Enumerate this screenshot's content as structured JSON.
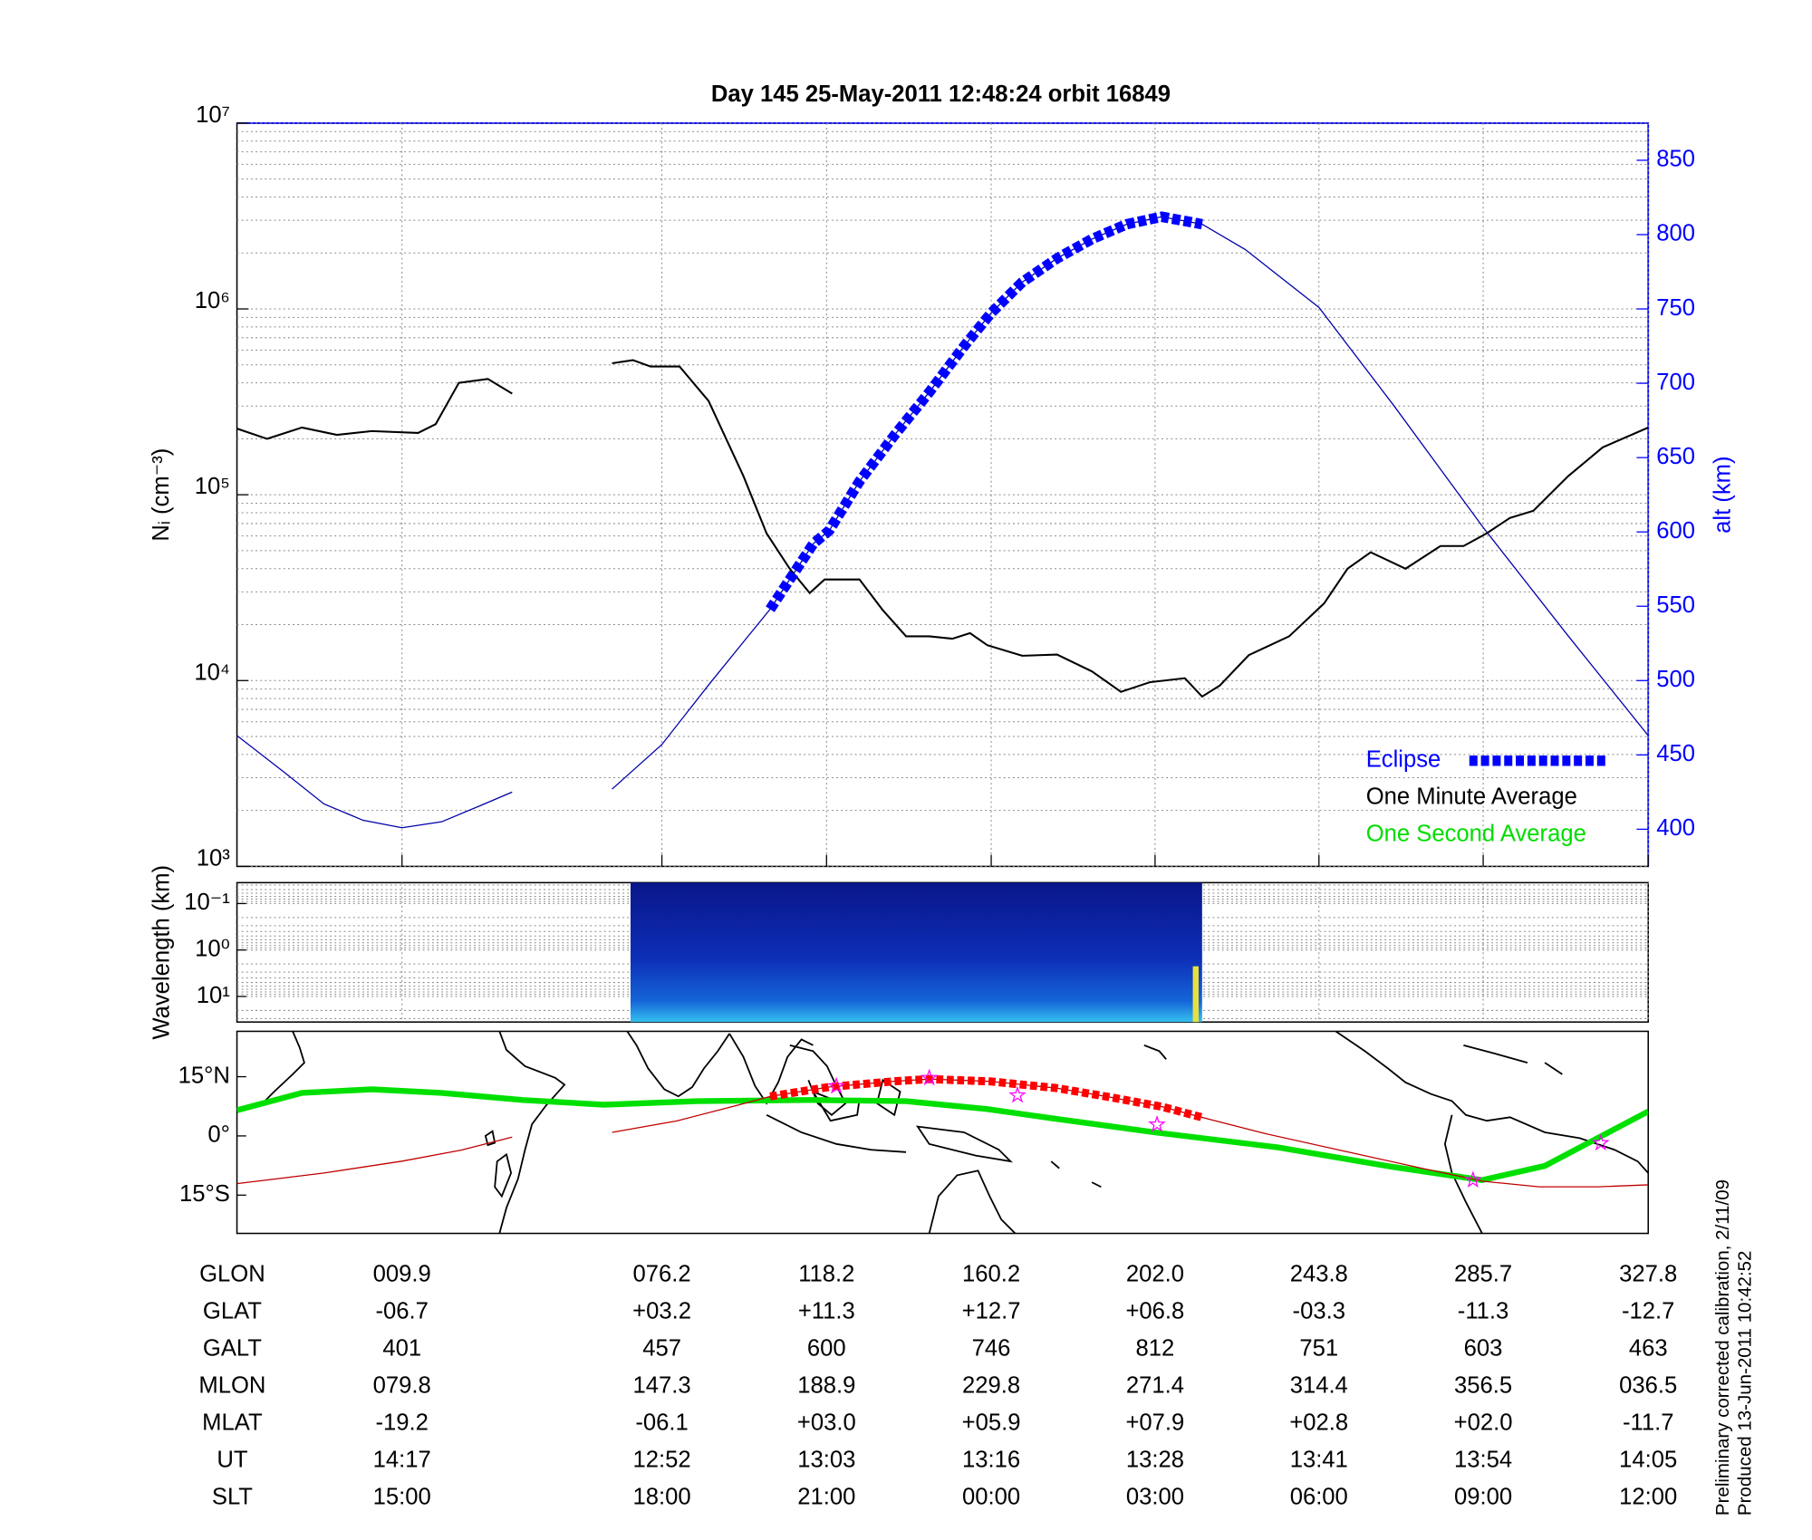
{
  "chart_data": [
    {
      "type": "line",
      "title": "Day 145  25-May-2011 12:48:24   orbit 16849",
      "y_label": "Nᵢ (cm⁻³)",
      "y2_label": "alt (km)",
      "log_y": true,
      "grid": true,
      "minor_grid": true,
      "legend": "lower right",
      "xlim": [
        -32.2,
        327.8
      ],
      "xticks": [
        {
          "value": 9.9,
          "label": "009.9"
        },
        {
          "value": 76.2,
          "label": "076.2"
        },
        118.2,
        160.2,
        {
          "value": 202.0,
          "label": "202.0"
        },
        243.8,
        285.7,
        327.8
      ],
      "ylim": [
        1000,
        10000000
      ],
      "yticks": [
        {
          "value": 1000,
          "label": "10³"
        },
        {
          "value": 10000,
          "label": "10⁴"
        },
        {
          "value": 100000,
          "label": "10⁵"
        },
        {
          "value": 1000000,
          "label": "10⁶"
        },
        {
          "value": 10000000,
          "label": "10⁷"
        }
      ],
      "y2lim": [
        375,
        875
      ],
      "y2ticks": [
        400,
        450,
        500,
        550,
        600,
        650,
        700,
        750,
        800,
        850
      ],
      "y2_color": "#0000ff",
      "x": [
        -32.2,
        -24.5,
        -15.6,
        -6.7,
        2.2,
        14.0,
        18.5,
        24.4,
        31.8,
        38.0,
        50,
        63.5,
        68.8,
        73.3,
        80.7,
        88.1,
        97.0,
        102.9,
        108.8,
        113.9,
        117.7,
        126.6,
        132.5,
        138.5,
        144.4,
        150.3,
        154.8,
        159.2,
        168.1,
        177.0,
        185.9,
        193.3,
        200.7,
        209.6,
        214.0,
        218.5,
        225.9,
        236.2,
        245.1,
        251.1,
        257.0,
        265.9,
        274.8,
        280.7,
        286.6,
        292.5,
        298.5,
        307.4,
        316.2,
        327.8
      ],
      "series": [
        {
          "name": "Eclipse",
          "color": "#0000ff",
          "axis": "y2",
          "style": "dashed",
          "x": [
            103.8,
            114.8,
            118.9,
            126.6,
            135.5,
            144.4,
            153.3,
            160.1,
            168.1,
            177.0,
            185.9,
            194.8,
            203.7,
            214.0
          ],
          "values": [
            548,
            592,
            601,
            634,
            665,
            694,
            725,
            747,
            768,
            784,
            797,
            807,
            812,
            807
          ]
        },
        {
          "name": "One Minute Average",
          "color": "#000000",
          "style": "normal",
          "values": [
            227000,
            200000,
            230000,
            210000,
            220000,
            215000,
            240000,
            400000,
            420000,
            350000,
            null,
            510000,
            530000,
            490000,
            490000,
            320000,
            126000,
            62000,
            40000,
            29600,
            35000,
            35000,
            24000,
            17300,
            17300,
            16800,
            18000,
            15500,
            13600,
            13800,
            11200,
            8700,
            9800,
            10300,
            8200,
            9400,
            13700,
            17300,
            26000,
            40000,
            49000,
            40000,
            53000,
            53000,
            62000,
            75000,
            82000,
            126000,
            180000,
            230000
          ]
        },
        {
          "name": "One Second Average",
          "color": "#00dd00",
          "style": "thin",
          "values": [
            227000,
            200000,
            230000,
            210000,
            220000,
            215000,
            240000,
            400000,
            420000,
            350000,
            null,
            510000,
            530000,
            490000,
            490000,
            320000,
            126000,
            62000,
            40000,
            29600,
            35000,
            35000,
            24000,
            17300,
            17300,
            16800,
            18000,
            15500,
            13600,
            13800,
            11200,
            8700,
            9800,
            10300,
            8200,
            9400,
            13700,
            17300,
            26000,
            40000,
            49000,
            40000,
            53000,
            53000,
            62000,
            75000,
            82000,
            126000,
            180000,
            230000
          ]
        },
        {
          "color": "#0000aa",
          "axis": "y2",
          "style": "thin",
          "x": [
            -32.2,
            -20,
            -10,
            0,
            9.9,
            20,
            30,
            38.0,
            50,
            63.5,
            76.2,
            88.1,
            97.0,
            103.8,
            114.8,
            118.9,
            126.6,
            135.5,
            144.4,
            153.3,
            160.1,
            168.1,
            177.0,
            185.9,
            194.8,
            203.7,
            214.0,
            225,
            243.8,
            262.9,
            285.7,
            307.4,
            327.8
          ],
          "values": [
            463,
            438,
            417,
            406,
            401,
            405,
            416,
            425,
            null,
            427,
            457,
            497,
            526,
            548,
            592,
            601,
            634,
            665,
            694,
            725,
            747,
            768,
            784,
            797,
            807,
            812,
            807,
            790,
            751,
            685,
            603,
            530,
            463
          ]
        }
      ]
    },
    {
      "type": "spectrogram",
      "y_label": "Wavelength (km)",
      "log_y": true,
      "y_reversed": true,
      "grid": true,
      "minor_grid": true,
      "xlim": [
        -32.2,
        327.8
      ],
      "ylim": [
        0.0355,
        35.5
      ],
      "yticks": [
        {
          "value": 0.1,
          "label": "10⁻¹"
        },
        {
          "value": 1,
          "label": "10⁰"
        },
        {
          "value": 10,
          "label": "10¹"
        }
      ],
      "x_extent": [
        68.2,
        214.0
      ]
    },
    {
      "type": "map",
      "xlim": [
        -32.2,
        327.8
      ],
      "ylim": [
        -24.7,
        26.5
      ],
      "yticks": [
        {
          "value": 15,
          "label": "15°N"
        },
        {
          "value": 0,
          "label": "0°"
        },
        {
          "value": -15,
          "label": "15°S"
        }
      ],
      "series": [
        {
          "color": "#00e000",
          "style": "thick",
          "x": [
            -32.2,
            -15.6,
            2.2,
            19.9,
            40.7,
            61.4,
            85.1,
            114.8,
            138.5,
            159.2,
            174.0,
            201.9,
            233.3,
            262.9,
            285.4,
            301.4,
            327.8
          ],
          "values": [
            6.5,
            10.9,
            11.8,
            10.9,
            9.1,
            7.9,
            8.8,
            9.1,
            8.8,
            6.8,
            4.7,
            0.9,
            -2.9,
            -7.9,
            -11.2,
            -7.6,
            6.2
          ]
        },
        {
          "color": "#c00000",
          "style": "thin",
          "x": [
            -32.2,
            -10,
            9.9,
            25,
            38,
            50,
            63.5,
            80,
            96,
            103.8,
            118.9,
            135,
            144.4,
            160.1,
            177,
            190,
            203.7,
            214,
            230,
            250,
            270,
            285.7,
            300,
            315,
            327.8
          ],
          "values": [
            -12.1,
            -9.4,
            -6.4,
            -3.6,
            -0.3,
            null,
            0.9,
            3.8,
            7.9,
            10.0,
            12.4,
            13.8,
            14.4,
            13.8,
            12.1,
            9.9,
            7.4,
            4.7,
            0.6,
            -3.8,
            -8.2,
            -11.5,
            -12.9,
            -12.9,
            -12.4
          ]
        },
        {
          "color": "#ff0000",
          "style": "dashed-map",
          "x": [
            103.8,
            118.9,
            135,
            144.4,
            160.1,
            177,
            190,
            203.7,
            214
          ],
          "values": [
            10.0,
            12.4,
            13.8,
            14.4,
            13.8,
            12.1,
            9.9,
            7.4,
            4.7
          ]
        },
        {
          "color": "#ff00ff",
          "style": "star",
          "x": [
            120.7,
            144.4,
            166.9,
            202.5,
            283.1,
            315.7
          ],
          "values": [
            12.6,
            14.7,
            10.3,
            2.9,
            -11.2,
            -1.8
          ]
        }
      ]
    }
  ],
  "ephemeris": {
    "rows": [
      {
        "label": "GLON"
      },
      {
        "label": "GLAT",
        "values": [
          "-06.7",
          "+03.2",
          "+11.3",
          "+12.7",
          "+06.8",
          "-03.3",
          "-11.3",
          "-12.7"
        ]
      },
      {
        "label": "GALT",
        "values": [
          "401",
          "457",
          "600",
          "746",
          "812",
          "751",
          "603",
          "463"
        ]
      },
      {
        "label": "MLON",
        "values": [
          "079.8",
          "147.3",
          "188.9",
          "229.8",
          "271.4",
          "314.4",
          "356.5",
          "036.5"
        ]
      },
      {
        "label": "MLAT",
        "values": [
          "-19.2",
          "-06.1",
          "+03.0",
          "+05.9",
          "+07.9",
          "+02.8",
          "+02.0",
          "-11.7"
        ]
      },
      {
        "label": "UT",
        "values": [
          "14:17",
          "12:52",
          "13:03",
          "13:16",
          "13:28",
          "13:41",
          "13:54",
          "14:05"
        ]
      },
      {
        "label": "SLT",
        "values": [
          "15:00",
          "18:00",
          "21:00",
          "00:00",
          "03:00",
          "06:00",
          "09:00",
          "12:00"
        ]
      }
    ]
  },
  "notes": [
    "Preliminary corrected calibration, 2/11/09",
    "Produced 13-Jun-2011 10:42:52"
  ]
}
